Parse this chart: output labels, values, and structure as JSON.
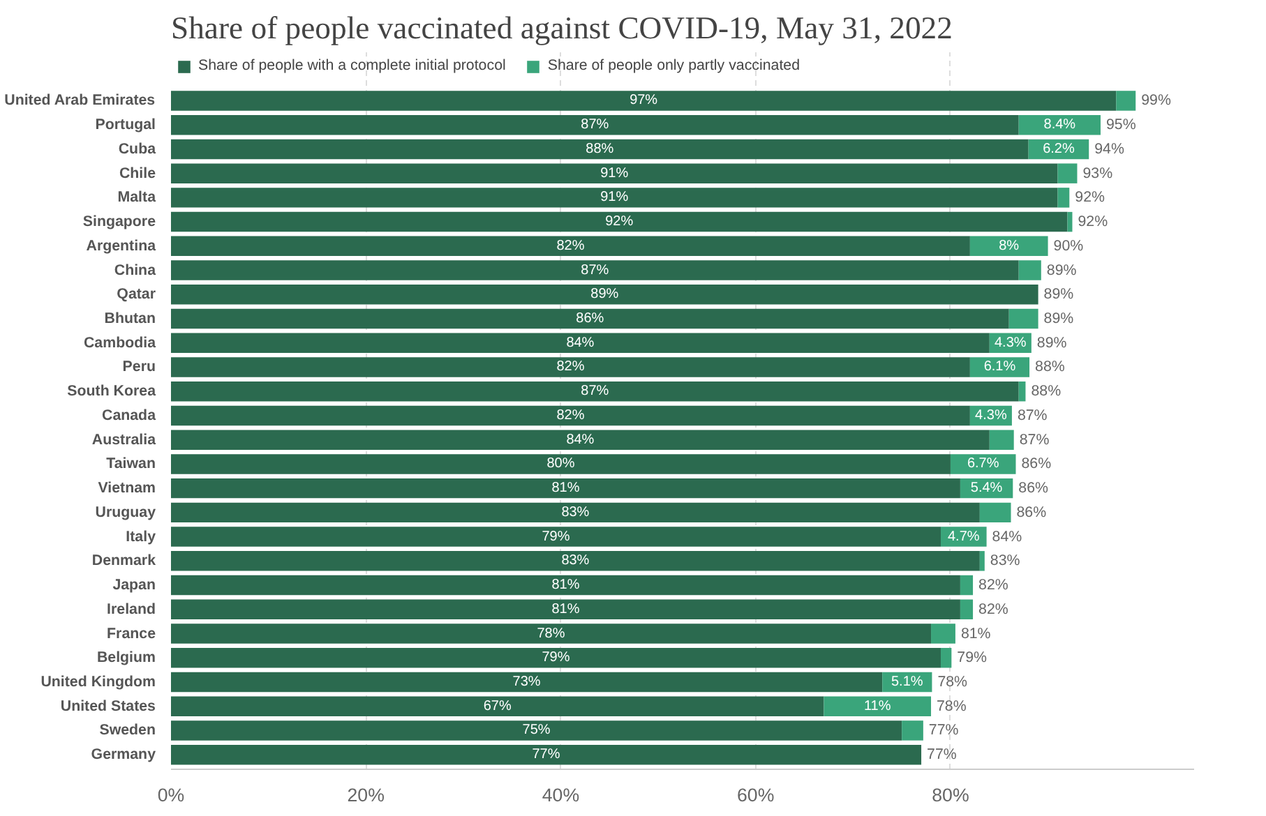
{
  "chart_data": {
    "type": "bar",
    "orientation": "horizontal",
    "stacked": true,
    "title": "Share of people vaccinated against COVID-19, May 31, 2022",
    "categories": [
      "United Arab Emirates",
      "Portugal",
      "Cuba",
      "Chile",
      "Malta",
      "Singapore",
      "Argentina",
      "China",
      "Qatar",
      "Bhutan",
      "Cambodia",
      "Peru",
      "South Korea",
      "Canada",
      "Australia",
      "Taiwan",
      "Vietnam",
      "Uruguay",
      "Italy",
      "Denmark",
      "Japan",
      "Ireland",
      "France",
      "Belgium",
      "United Kingdom",
      "United States",
      "Sweden",
      "Germany"
    ],
    "series": [
      {
        "name": "Share of people with a complete initial protocol",
        "color": "#2b6a4f",
        "values": [
          97,
          87,
          88,
          91,
          91,
          92,
          82,
          87,
          89,
          86,
          84,
          82,
          87,
          82,
          84,
          80,
          81,
          83,
          79,
          83,
          81,
          81,
          78,
          79,
          73,
          67,
          75,
          77
        ],
        "value_labels": [
          "97%",
          "87%",
          "88%",
          "91%",
          "91%",
          "92%",
          "82%",
          "87%",
          "89%",
          "86%",
          "84%",
          "82%",
          "87%",
          "82%",
          "84%",
          "80%",
          "81%",
          "83%",
          "79%",
          "83%",
          "81%",
          "81%",
          "78%",
          "79%",
          "73%",
          "67%",
          "75%",
          "77%"
        ]
      },
      {
        "name": "Share of people only partly vaccinated",
        "color": "#3aa57b",
        "values": [
          2,
          8.4,
          6.2,
          2,
          1.2,
          0.5,
          8,
          2.3,
          0,
          3,
          4.3,
          6.1,
          0.7,
          4.3,
          2.5,
          6.7,
          5.4,
          3.2,
          4.7,
          0.5,
          1.3,
          1.3,
          2.5,
          1.1,
          5.1,
          11,
          2.2,
          0
        ],
        "value_labels": [
          null,
          "8.4%",
          "6.2%",
          null,
          null,
          null,
          "8%",
          null,
          null,
          null,
          "4.3%",
          "6.1%",
          null,
          "4.3%",
          null,
          "6.7%",
          "5.4%",
          null,
          "4.7%",
          null,
          null,
          null,
          null,
          null,
          "5.1%",
          "11%",
          null,
          null
        ]
      }
    ],
    "totals": [
      "99%",
      "95%",
      "94%",
      "93%",
      "92%",
      "92%",
      "90%",
      "89%",
      "89%",
      "89%",
      "89%",
      "88%",
      "88%",
      "87%",
      "87%",
      "86%",
      "86%",
      "86%",
      "84%",
      "83%",
      "82%",
      "82%",
      "81%",
      "79%",
      "78%",
      "78%",
      "77%",
      "77%"
    ],
    "xlim": [
      0,
      105
    ],
    "xticks": [
      {
        "value": 0,
        "label": "0%"
      },
      {
        "value": 20,
        "label": "20%"
      },
      {
        "value": 40,
        "label": "40%"
      },
      {
        "value": 60,
        "label": "60%"
      },
      {
        "value": 80,
        "label": "80%"
      }
    ],
    "grid": "x",
    "legend": "top left"
  }
}
